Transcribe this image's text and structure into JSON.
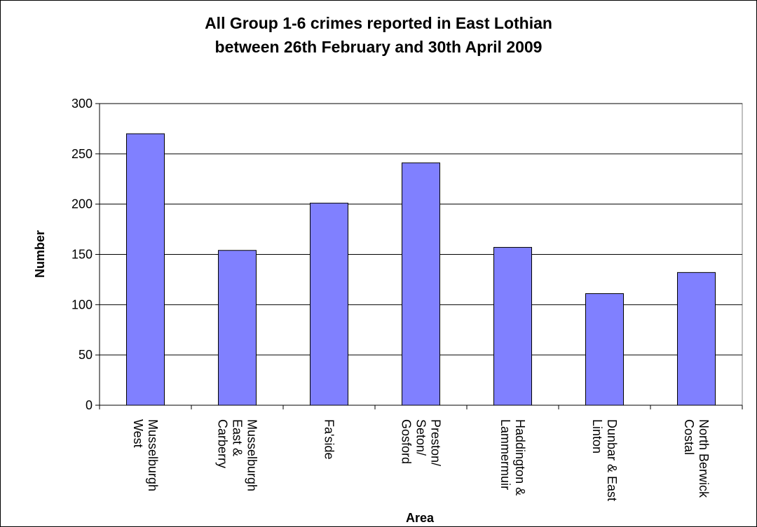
{
  "chart_data": {
    "type": "bar",
    "title_lines": [
      "All Group 1-6 crimes reported in East Lothian",
      "between 26th February and 30th April 2009"
    ],
    "xlabel": "Area",
    "ylabel": "Number",
    "ylim": [
      0,
      300
    ],
    "yticks": [
      0,
      50,
      100,
      150,
      200,
      250,
      300
    ],
    "grid": true,
    "categories": [
      [
        "Musselburgh",
        "West"
      ],
      [
        "Musselburgh",
        "East &",
        "Carberry"
      ],
      [
        "Fa'side"
      ],
      [
        "Preston/",
        "Seton/",
        "Gosford"
      ],
      [
        "Haddington &",
        "Lammermuir"
      ],
      [
        "Dunbar & East",
        "Linton"
      ],
      [
        "North Berwick",
        "Costal"
      ]
    ],
    "values": [
      270,
      154,
      201,
      241,
      157,
      111,
      132
    ],
    "bar_color": "#8080ff",
    "legend": "none"
  }
}
